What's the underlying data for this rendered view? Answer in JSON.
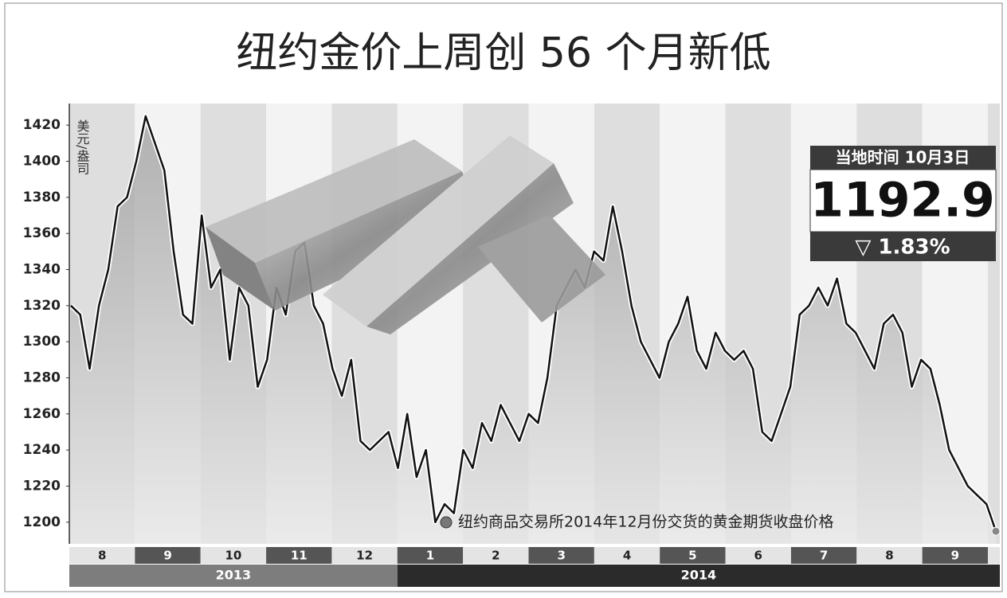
{
  "chart_data": {
    "type": "line",
    "title": "纽约金价上周创 56 个月新低",
    "y_axis_label": "美元/盎司",
    "ylim": [
      1188,
      1432
    ],
    "yticks": [
      1200,
      1220,
      1240,
      1260,
      1280,
      1300,
      1320,
      1340,
      1360,
      1380,
      1400,
      1420
    ],
    "month_labels": [
      "8",
      "9",
      "10",
      "11",
      "12",
      "1",
      "2",
      "3",
      "4",
      "5",
      "6",
      "7",
      "8",
      "9"
    ],
    "year_labels": [
      "2013",
      "2014"
    ],
    "series": [
      {
        "name": "纽约商品交易所2014年12月份交货的黄金期货收盘价格",
        "color": "#111111",
        "values": [
          1320,
          1315,
          1285,
          1320,
          1340,
          1375,
          1380,
          1400,
          1425,
          1410,
          1395,
          1350,
          1315,
          1310,
          1370,
          1330,
          1340,
          1290,
          1330,
          1320,
          1275,
          1290,
          1330,
          1315,
          1350,
          1355,
          1320,
          1310,
          1285,
          1270,
          1290,
          1245,
          1240,
          1245,
          1250,
          1230,
          1260,
          1225,
          1240,
          1200,
          1210,
          1205,
          1240,
          1230,
          1255,
          1245,
          1265,
          1255,
          1245,
          1260,
          1255,
          1280,
          1320,
          1330,
          1340,
          1330,
          1350,
          1345,
          1375,
          1350,
          1320,
          1300,
          1290,
          1280,
          1300,
          1310,
          1325,
          1295,
          1285,
          1305,
          1295,
          1290,
          1295,
          1285,
          1250,
          1245,
          1260,
          1275,
          1315,
          1320,
          1330,
          1320,
          1335,
          1310,
          1305,
          1295,
          1285,
          1310,
          1315,
          1305,
          1275,
          1290,
          1285,
          1265,
          1240,
          1230,
          1220,
          1215,
          1210,
          1195
        ]
      }
    ],
    "callout": {
      "header": "当地时间 10月3日",
      "value": "1192.9",
      "change": "▽ 1.83%"
    }
  }
}
